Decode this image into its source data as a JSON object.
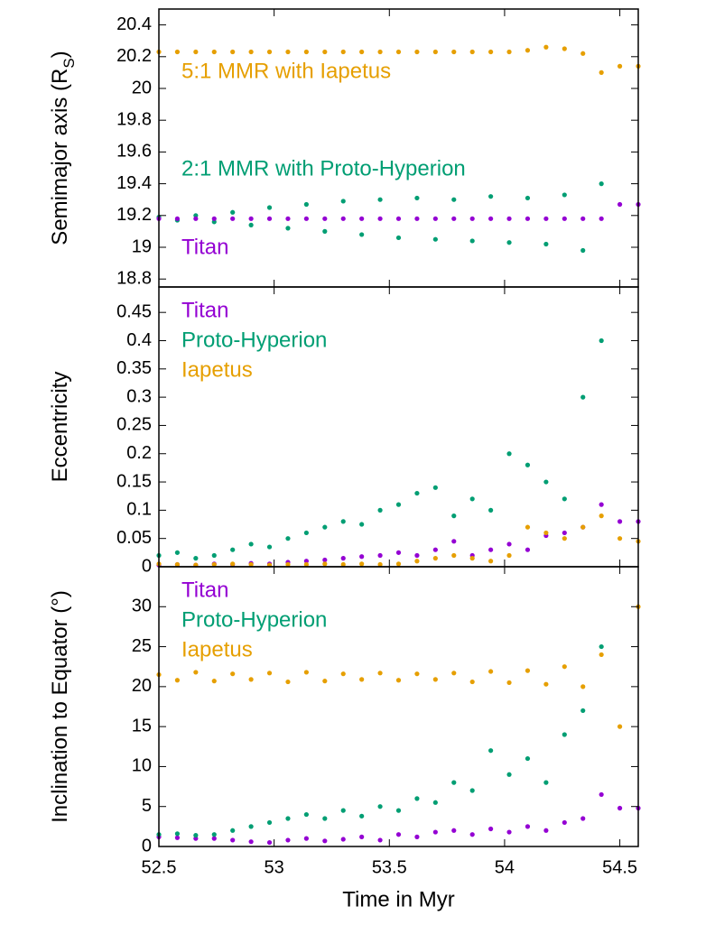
{
  "chart_data": [
    {
      "type": "scatter",
      "ylabel": "Semimajor axis (R",
      "ylabel_sub": "S",
      "ylabel_end": ")",
      "xlim": [
        52.5,
        54.58
      ],
      "xticks": [
        52.5,
        53,
        53.5,
        54,
        54.5
      ],
      "show_xticklabels": false,
      "ylim": [
        18.75,
        20.5
      ],
      "yticks": [
        18.8,
        19,
        19.2,
        19.4,
        19.6,
        19.8,
        20,
        20.2,
        20.4
      ],
      "annotations": [
        {
          "text": "5:1 MMR with Iapetus",
          "color": "#e69f00"
        },
        {
          "text": "2:1 MMR with Proto-Hyperion",
          "color": "#009e73"
        },
        {
          "text": "Titan",
          "color": "#9400d3"
        }
      ],
      "x": [
        52.5,
        52.58,
        52.66,
        52.74,
        52.82,
        52.9,
        52.98,
        53.06,
        53.14,
        53.22,
        53.3,
        53.38,
        53.46,
        53.54,
        53.62,
        53.7,
        53.78,
        53.86,
        53.94,
        54.02,
        54.1,
        54.18,
        54.26,
        54.34,
        54.42,
        54.5,
        54.58
      ],
      "series": [
        {
          "name": "Iapetus",
          "color": "#e69f00",
          "values": [
            20.23,
            20.23,
            20.23,
            20.23,
            20.23,
            20.23,
            20.23,
            20.23,
            20.23,
            20.23,
            20.23,
            20.23,
            20.23,
            20.23,
            20.23,
            20.23,
            20.23,
            20.23,
            20.23,
            20.23,
            20.24,
            20.26,
            20.25,
            20.22,
            20.1,
            20.14,
            20.14
          ]
        },
        {
          "name": "Proto-Hyperion",
          "color": "#009e73",
          "values": [
            19.19,
            19.17,
            19.2,
            19.16,
            19.22,
            19.14,
            19.25,
            19.12,
            19.27,
            19.1,
            19.29,
            19.08,
            19.3,
            19.06,
            19.31,
            19.05,
            19.3,
            19.04,
            19.32,
            19.03,
            19.31,
            19.02,
            19.33,
            18.98,
            19.4,
            null,
            null
          ]
        },
        {
          "name": "Titan",
          "color": "#9400d3",
          "values": [
            19.18,
            19.18,
            19.18,
            19.18,
            19.18,
            19.18,
            19.18,
            19.18,
            19.18,
            19.18,
            19.18,
            19.18,
            19.18,
            19.18,
            19.18,
            19.18,
            19.18,
            19.18,
            19.18,
            19.18,
            19.18,
            19.18,
            19.18,
            19.18,
            19.18,
            19.27,
            19.27
          ]
        }
      ]
    },
    {
      "type": "scatter",
      "ylabel": "Eccentricity",
      "xlim": [
        52.5,
        54.58
      ],
      "xticks": [
        52.5,
        53,
        53.5,
        54,
        54.5
      ],
      "show_xticklabels": false,
      "ylim": [
        0,
        0.495
      ],
      "yticks": [
        0,
        0.05,
        0.1,
        0.15,
        0.2,
        0.25,
        0.3,
        0.35,
        0.4,
        0.45
      ],
      "legend": "top-left",
      "x": [
        52.5,
        52.58,
        52.66,
        52.74,
        52.82,
        52.9,
        52.98,
        53.06,
        53.14,
        53.22,
        53.3,
        53.38,
        53.46,
        53.54,
        53.62,
        53.7,
        53.78,
        53.86,
        53.94,
        54.02,
        54.1,
        54.18,
        54.26,
        54.34,
        54.42,
        54.5,
        54.58
      ],
      "series": [
        {
          "name": "Titan",
          "color": "#9400d3",
          "values": [
            0.003,
            0.004,
            0.003,
            0.005,
            0.004,
            0.006,
            0.005,
            0.008,
            0.01,
            0.012,
            0.015,
            0.018,
            0.02,
            0.025,
            0.02,
            0.03,
            0.045,
            0.02,
            0.03,
            0.04,
            0.03,
            0.055,
            0.06,
            0.07,
            0.11,
            0.08,
            0.08
          ]
        },
        {
          "name": "Proto-Hyperion",
          "color": "#009e73",
          "values": [
            0.02,
            0.025,
            0.015,
            0.02,
            0.03,
            0.04,
            0.035,
            0.05,
            0.06,
            0.07,
            0.08,
            0.075,
            0.1,
            0.11,
            0.13,
            0.14,
            0.09,
            0.12,
            0.1,
            0.2,
            0.18,
            0.15,
            0.12,
            0.3,
            0.4,
            null,
            null
          ]
        },
        {
          "name": "Iapetus",
          "color": "#e69f00",
          "values": [
            0.005,
            0.004,
            0.003,
            0.004,
            0.005,
            0.004,
            0.003,
            0.004,
            0.004,
            0.005,
            0.004,
            0.005,
            0.004,
            0.005,
            0.01,
            0.015,
            0.02,
            0.015,
            0.01,
            0.02,
            0.07,
            0.06,
            0.05,
            0.07,
            0.09,
            0.05,
            0.045
          ]
        }
      ]
    },
    {
      "type": "scatter",
      "ylabel": "Inclination to Equator (°)",
      "xlabel": "Time in Myr",
      "xlim": [
        52.5,
        54.58
      ],
      "xticks": [
        52.5,
        53,
        53.5,
        54,
        54.5
      ],
      "show_xticklabels": true,
      "ylim": [
        0,
        35
      ],
      "yticks": [
        0,
        5,
        10,
        15,
        20,
        25,
        30
      ],
      "legend": "top-left",
      "x": [
        52.5,
        52.58,
        52.66,
        52.74,
        52.82,
        52.9,
        52.98,
        53.06,
        53.14,
        53.22,
        53.3,
        53.38,
        53.46,
        53.54,
        53.62,
        53.7,
        53.78,
        53.86,
        53.94,
        54.02,
        54.1,
        54.18,
        54.26,
        54.34,
        54.42,
        54.5,
        54.58
      ],
      "series": [
        {
          "name": "Titan",
          "color": "#9400d3",
          "values": [
            1.2,
            1.1,
            1.0,
            1.0,
            0.8,
            0.6,
            0.5,
            0.8,
            1.0,
            0.7,
            0.9,
            1.2,
            0.8,
            1.5,
            1.2,
            1.8,
            2.0,
            1.5,
            2.2,
            1.8,
            2.5,
            2.0,
            3.0,
            3.5,
            6.5,
            4.8,
            4.8
          ]
        },
        {
          "name": "Proto-Hyperion",
          "color": "#009e73",
          "values": [
            1.5,
            1.6,
            1.4,
            1.5,
            2.0,
            2.5,
            3.0,
            3.5,
            4.0,
            3.5,
            4.5,
            3.8,
            5.0,
            4.5,
            6.0,
            5.5,
            8.0,
            7.0,
            12.0,
            9.0,
            11.0,
            8.0,
            14.0,
            17.0,
            25.0,
            null,
            null
          ]
        },
        {
          "name": "Iapetus",
          "color": "#e69f00",
          "values": [
            21.5,
            20.8,
            21.8,
            20.7,
            21.6,
            20.9,
            21.7,
            20.6,
            21.8,
            20.7,
            21.6,
            20.9,
            21.7,
            20.8,
            21.6,
            20.9,
            21.7,
            20.6,
            21.9,
            20.5,
            22.0,
            20.3,
            22.5,
            20.0,
            24.0,
            15.0,
            30.0
          ]
        }
      ]
    }
  ]
}
